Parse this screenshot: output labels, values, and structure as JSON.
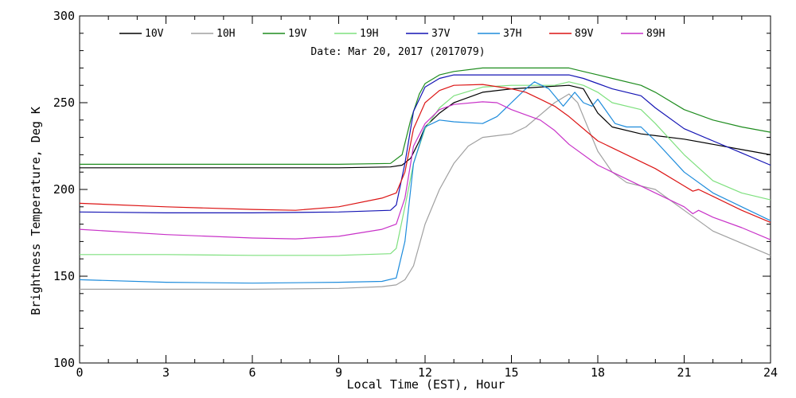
{
  "chart_data": {
    "type": "line",
    "xlabel": "Local Time (EST), Hour",
    "ylabel": "Brightness Temperature, Deg K",
    "annotation": "Date: Mar 20, 2017 (2017079)",
    "xlim": [
      0,
      24
    ],
    "ylim": [
      100,
      300
    ],
    "xticks": [
      0,
      3,
      6,
      9,
      12,
      15,
      18,
      21,
      24
    ],
    "yticks": [
      100,
      150,
      200,
      250,
      300
    ],
    "x_minor_step": 1,
    "y_minor_step": 10,
    "grid": false,
    "legend_position": "top",
    "colors": {
      "10V": "#000000",
      "10H": "#a0a0a0",
      "19V": "#1e8c1e",
      "19H": "#7ee07e",
      "37V": "#1414b4",
      "37H": "#1e8cdc",
      "89V": "#dc1414",
      "89H": "#c832c8"
    },
    "series": [
      {
        "name": "10V",
        "points": [
          [
            0,
            212.5
          ],
          [
            3,
            212.5
          ],
          [
            6,
            212.5
          ],
          [
            9,
            212.5
          ],
          [
            10.8,
            213
          ],
          [
            11.2,
            214
          ],
          [
            11.5,
            218
          ],
          [
            11.8,
            228
          ],
          [
            12,
            236
          ],
          [
            12.5,
            244
          ],
          [
            13,
            250
          ],
          [
            14,
            256
          ],
          [
            15,
            258
          ],
          [
            16,
            259
          ],
          [
            17,
            260
          ],
          [
            17.5,
            258
          ],
          [
            18,
            244
          ],
          [
            18.5,
            236
          ],
          [
            19.5,
            232
          ],
          [
            20,
            231
          ],
          [
            21,
            229
          ],
          [
            22,
            226
          ],
          [
            23,
            223
          ],
          [
            24,
            220
          ]
        ]
      },
      {
        "name": "10H",
        "points": [
          [
            0,
            142.5
          ],
          [
            3,
            142.5
          ],
          [
            6,
            142.5
          ],
          [
            9,
            143
          ],
          [
            10.5,
            144
          ],
          [
            11,
            145
          ],
          [
            11.3,
            148
          ],
          [
            11.6,
            156
          ],
          [
            12,
            180
          ],
          [
            12.5,
            200
          ],
          [
            13,
            215
          ],
          [
            13.5,
            225
          ],
          [
            14,
            230
          ],
          [
            15,
            232
          ],
          [
            15.5,
            236
          ],
          [
            16,
            243
          ],
          [
            16.5,
            250
          ],
          [
            17,
            255
          ],
          [
            17.3,
            250
          ],
          [
            17.6,
            238
          ],
          [
            18,
            222
          ],
          [
            18.5,
            210
          ],
          [
            19,
            204
          ],
          [
            20,
            200
          ],
          [
            21,
            188
          ],
          [
            22,
            176
          ],
          [
            23,
            169
          ],
          [
            24,
            162
          ]
        ]
      },
      {
        "name": "19V",
        "points": [
          [
            0,
            214.5
          ],
          [
            3,
            214.5
          ],
          [
            6,
            214.5
          ],
          [
            9,
            214.5
          ],
          [
            10.8,
            215
          ],
          [
            11.2,
            220
          ],
          [
            11.5,
            240
          ],
          [
            11.8,
            255
          ],
          [
            12,
            261
          ],
          [
            12.5,
            266
          ],
          [
            13,
            268
          ],
          [
            14,
            270
          ],
          [
            15,
            270
          ],
          [
            16,
            270
          ],
          [
            17,
            270
          ],
          [
            17.5,
            268
          ],
          [
            18,
            266
          ],
          [
            18.5,
            264
          ],
          [
            19.5,
            260
          ],
          [
            20,
            256
          ],
          [
            21,
            246
          ],
          [
            22,
            240
          ],
          [
            23,
            236
          ],
          [
            24,
            233
          ]
        ]
      },
      {
        "name": "19H",
        "points": [
          [
            0,
            162.5
          ],
          [
            3,
            162.5
          ],
          [
            6,
            162
          ],
          [
            9,
            162
          ],
          [
            10.8,
            163
          ],
          [
            11,
            166
          ],
          [
            11.3,
            190
          ],
          [
            11.6,
            215
          ],
          [
            12,
            235
          ],
          [
            12.5,
            247
          ],
          [
            13,
            254
          ],
          [
            14,
            259
          ],
          [
            15,
            260
          ],
          [
            16,
            260
          ],
          [
            16.5,
            260
          ],
          [
            17,
            262
          ],
          [
            17.5,
            260
          ],
          [
            18,
            256
          ],
          [
            18.5,
            250
          ],
          [
            19.5,
            246
          ],
          [
            20,
            238
          ],
          [
            21,
            220
          ],
          [
            22,
            205
          ],
          [
            23,
            198
          ],
          [
            24,
            194
          ]
        ]
      },
      {
        "name": "37V",
        "points": [
          [
            0,
            187
          ],
          [
            3,
            186.5
          ],
          [
            6,
            186.5
          ],
          [
            9,
            187
          ],
          [
            10.8,
            188
          ],
          [
            11,
            191
          ],
          [
            11.3,
            215
          ],
          [
            11.6,
            245
          ],
          [
            12,
            259
          ],
          [
            12.5,
            264
          ],
          [
            13,
            266
          ],
          [
            14,
            266
          ],
          [
            15,
            266
          ],
          [
            16,
            266
          ],
          [
            17,
            266
          ],
          [
            17.5,
            264
          ],
          [
            18,
            261
          ],
          [
            18.5,
            258
          ],
          [
            19.5,
            254
          ],
          [
            20,
            247
          ],
          [
            21,
            235
          ],
          [
            22,
            228
          ],
          [
            23,
            221
          ],
          [
            24,
            214
          ]
        ]
      },
      {
        "name": "37H",
        "points": [
          [
            0,
            148
          ],
          [
            3,
            146.5
          ],
          [
            6,
            146
          ],
          [
            9,
            146.5
          ],
          [
            10.5,
            147
          ],
          [
            11,
            149
          ],
          [
            11.3,
            170
          ],
          [
            11.6,
            215
          ],
          [
            12,
            236
          ],
          [
            12.5,
            240
          ],
          [
            13,
            239
          ],
          [
            14,
            238
          ],
          [
            14.5,
            242
          ],
          [
            15,
            250
          ],
          [
            15.5,
            258
          ],
          [
            15.8,
            262
          ],
          [
            16.3,
            258
          ],
          [
            16.8,
            248
          ],
          [
            17.2,
            256
          ],
          [
            17.5,
            250
          ],
          [
            17.8,
            248
          ],
          [
            18,
            252
          ],
          [
            18.3,
            245
          ],
          [
            18.6,
            238
          ],
          [
            19,
            236
          ],
          [
            19.5,
            236
          ],
          [
            20,
            228
          ],
          [
            21,
            210
          ],
          [
            22,
            198
          ],
          [
            23,
            190
          ],
          [
            24,
            182
          ]
        ]
      },
      {
        "name": "89V",
        "points": [
          [
            0,
            192
          ],
          [
            3,
            190
          ],
          [
            6,
            188.5
          ],
          [
            7.5,
            188
          ],
          [
            9,
            190
          ],
          [
            10.5,
            195
          ],
          [
            11,
            198
          ],
          [
            11.3,
            210
          ],
          [
            11.6,
            235
          ],
          [
            12,
            250
          ],
          [
            12.5,
            257
          ],
          [
            13,
            260
          ],
          [
            14,
            260.5
          ],
          [
            15,
            258
          ],
          [
            15.5,
            256
          ],
          [
            16,
            252
          ],
          [
            16.5,
            248
          ],
          [
            17,
            242
          ],
          [
            18,
            228
          ],
          [
            19,
            220
          ],
          [
            20,
            212
          ],
          [
            21,
            202
          ],
          [
            21.3,
            199
          ],
          [
            21.5,
            200
          ],
          [
            22,
            196
          ],
          [
            23,
            188
          ],
          [
            24,
            181
          ]
        ]
      },
      {
        "name": "89H",
        "points": [
          [
            0,
            177
          ],
          [
            3,
            174
          ],
          [
            6,
            172
          ],
          [
            7.5,
            171.5
          ],
          [
            9,
            173
          ],
          [
            10.5,
            177
          ],
          [
            11,
            180
          ],
          [
            11.3,
            195
          ],
          [
            11.6,
            225
          ],
          [
            12,
            238
          ],
          [
            12.5,
            246
          ],
          [
            13,
            249
          ],
          [
            14,
            250.5
          ],
          [
            14.5,
            250
          ],
          [
            15,
            246
          ],
          [
            15.5,
            243
          ],
          [
            16,
            240
          ],
          [
            16.5,
            234
          ],
          [
            17,
            226
          ],
          [
            18,
            214
          ],
          [
            19,
            206
          ],
          [
            20,
            198
          ],
          [
            21,
            190
          ],
          [
            21.3,
            186
          ],
          [
            21.5,
            188
          ],
          [
            22,
            184
          ],
          [
            23,
            178
          ],
          [
            24,
            171
          ]
        ]
      }
    ]
  }
}
